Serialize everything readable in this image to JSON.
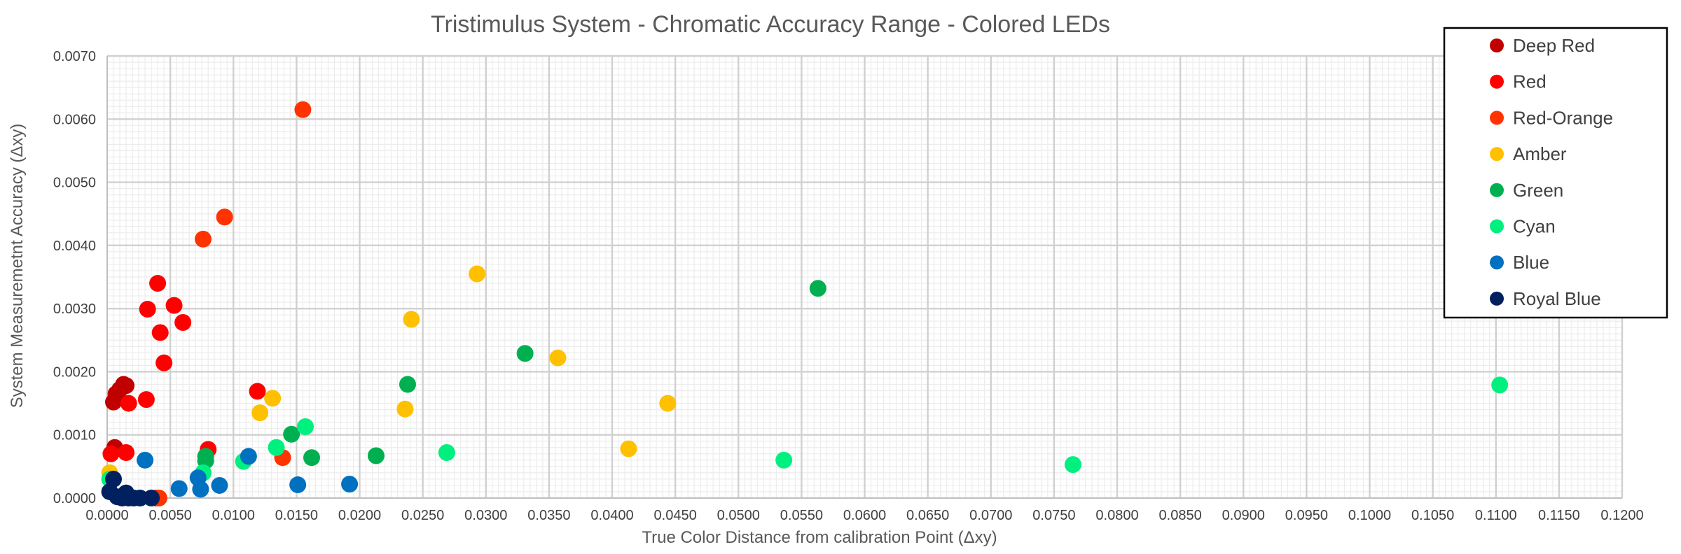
{
  "chart_data": {
    "type": "scatter",
    "title": "Tristimulus System - Chromatic Accuracy Range - Colored LEDs",
    "xlabel": "True Color Distance from calibration Point (Δxy)",
    "ylabel": "System Measuremetnt Accuracy (Δxy)",
    "xlim": [
      0,
      0.12
    ],
    "ylim": [
      0,
      0.007
    ],
    "x_ticks": [
      "0.0000",
      "0.0050",
      "0.0100",
      "0.0150",
      "0.0200",
      "0.0250",
      "0.0300",
      "0.0350",
      "0.0400",
      "0.0450",
      "0.0500",
      "0.0550",
      "0.0600",
      "0.0650",
      "0.0700",
      "0.0750",
      "0.0800",
      "0.0850",
      "0.0900",
      "0.0950",
      "0.1000",
      "0.1050",
      "0.1100",
      "0.1150",
      "0.1200"
    ],
    "y_ticks": [
      "0.0000",
      "0.0010",
      "0.0020",
      "0.0030",
      "0.0040",
      "0.0050",
      "0.0060",
      "0.0070"
    ],
    "grid": true,
    "legend_position": "top-right",
    "series": [
      {
        "name": "Deep Red",
        "color": "#c00000",
        "points": [
          [
            0.0005,
            0.00152
          ],
          [
            0.0007,
            0.00165
          ],
          [
            0.001,
            0.00172
          ],
          [
            0.0013,
            0.0018
          ],
          [
            0.0015,
            0.00178
          ],
          [
            0.0006,
            0.0008
          ]
        ]
      },
      {
        "name": "Red",
        "color": "#ff0000",
        "points": [
          [
            0.0003,
            0.0007
          ],
          [
            0.0015,
            0.00072
          ],
          [
            0.0017,
            0.0015
          ],
          [
            0.0031,
            0.00156
          ],
          [
            0.0032,
            0.00299
          ],
          [
            0.004,
            0.0034
          ],
          [
            0.0042,
            0.00262
          ],
          [
            0.0045,
            0.00214
          ],
          [
            0.0053,
            0.00305
          ],
          [
            0.006,
            0.00278
          ],
          [
            0.008,
            0.00077
          ],
          [
            0.0119,
            0.00169
          ],
          [
            0.0039,
            0.0
          ]
        ]
      },
      {
        "name": "Red-Orange",
        "color": "#ff3300",
        "points": [
          [
            0.0155,
            0.00615
          ],
          [
            0.0093,
            0.00445
          ],
          [
            0.0076,
            0.0041
          ],
          [
            0.0139,
            0.00064
          ],
          [
            0.0041,
            0.0
          ]
        ]
      },
      {
        "name": "Amber",
        "color": "#ffc000",
        "points": [
          [
            0.0293,
            0.00355
          ],
          [
            0.0241,
            0.00283
          ],
          [
            0.0357,
            0.00222
          ],
          [
            0.0236,
            0.00141
          ],
          [
            0.0444,
            0.0015
          ],
          [
            0.0131,
            0.00158
          ],
          [
            0.0121,
            0.00135
          ],
          [
            0.0413,
            0.00078
          ],
          [
            0.0002,
            0.0004
          ]
        ]
      },
      {
        "name": "Green",
        "color": "#00b050",
        "points": [
          [
            0.0563,
            0.00332
          ],
          [
            0.0331,
            0.00229
          ],
          [
            0.0238,
            0.0018
          ],
          [
            0.0146,
            0.00101
          ],
          [
            0.0162,
            0.00064
          ],
          [
            0.0213,
            0.00067
          ],
          [
            0.0078,
            0.00066
          ],
          [
            0.0078,
            0.00059
          ]
        ]
      },
      {
        "name": "Cyan",
        "color": "#00f080",
        "points": [
          [
            0.1103,
            0.00179
          ],
          [
            0.0157,
            0.00113
          ],
          [
            0.0134,
            0.0008
          ],
          [
            0.0108,
            0.00058
          ],
          [
            0.0076,
            0.0004
          ],
          [
            0.0269,
            0.00072
          ],
          [
            0.0536,
            0.0006
          ],
          [
            0.0765,
            0.00053
          ],
          [
            0.0002,
            0.0003
          ]
        ]
      },
      {
        "name": "Blue",
        "color": "#0070c0",
        "points": [
          [
            0.003,
            0.0006
          ],
          [
            0.0112,
            0.00066
          ],
          [
            0.0072,
            0.00032
          ],
          [
            0.0057,
            0.00015
          ],
          [
            0.0074,
            0.00014
          ],
          [
            0.0089,
            0.0002
          ],
          [
            0.0151,
            0.00021
          ],
          [
            0.0192,
            0.00022
          ]
        ]
      },
      {
        "name": "Royal Blue",
        "color": "#002060",
        "points": [
          [
            0.0002,
            0.0001
          ],
          [
            0.0005,
            0.0003
          ],
          [
            0.0008,
            2e-05
          ],
          [
            0.0012,
            0.0
          ],
          [
            0.0015,
            8e-05
          ],
          [
            0.0017,
            0.0
          ],
          [
            0.0021,
            0.0
          ],
          [
            0.0026,
            0.0
          ],
          [
            0.0035,
            0.0
          ]
        ]
      }
    ]
  }
}
